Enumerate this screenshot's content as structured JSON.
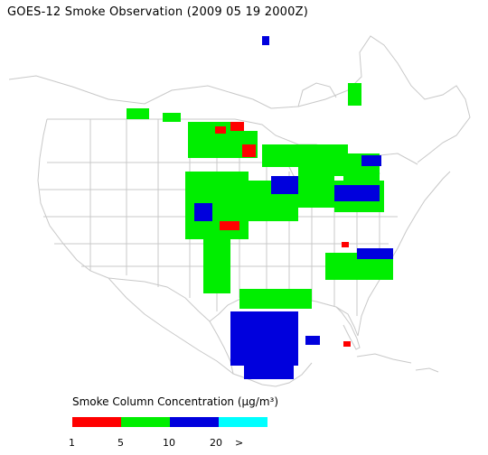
{
  "title": "GOES-12 Smoke Observation (2009 05 19  2000Z)",
  "legend": {
    "title": "Smoke Column Concentration (μg/m³)",
    "segments": [
      {
        "color": "#ff0000"
      },
      {
        "color": "#00ee00"
      },
      {
        "color": "#0000dd"
      },
      {
        "color": "#00ffff"
      }
    ],
    "ticks": [
      "1",
      "5",
      "10",
      "20",
      ">"
    ]
  },
  "colors": {
    "boundary": "#c8c8c8",
    "low": "#ff0000",
    "medium": "#00ee00",
    "high": "#0000dd",
    "very_high": "#00ffff"
  }
}
